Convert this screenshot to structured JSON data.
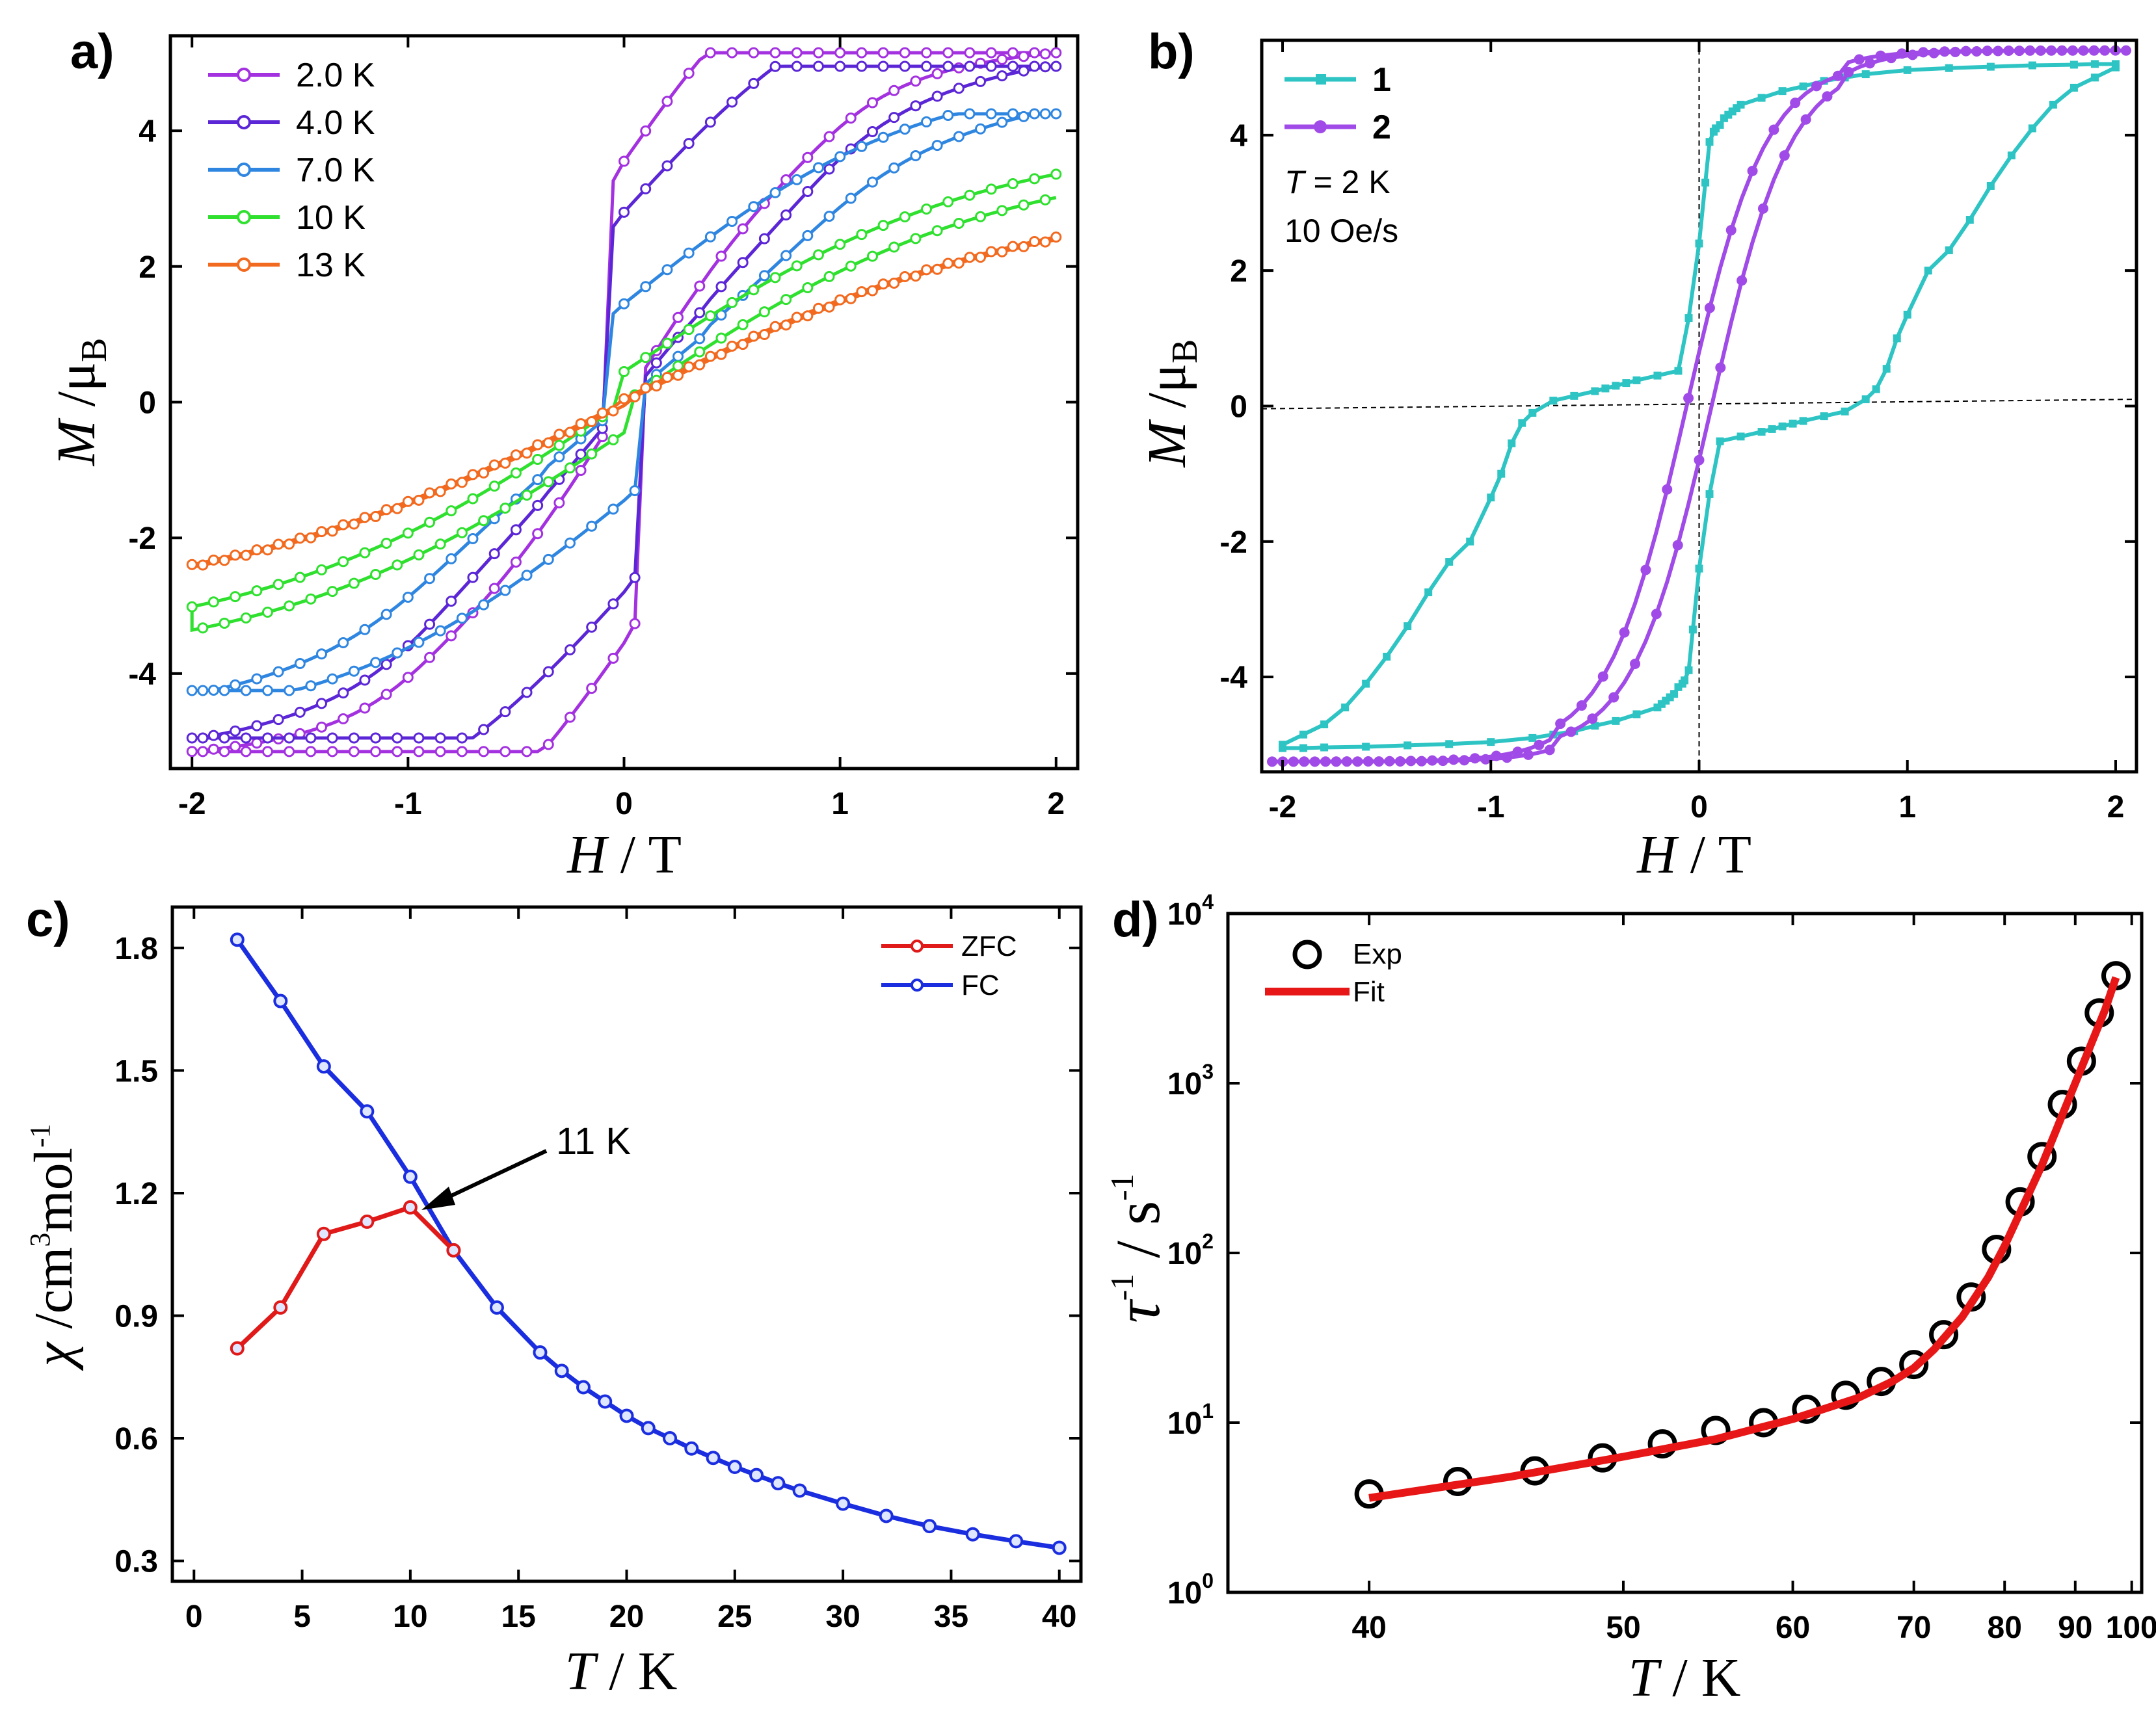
{
  "panels": {
    "a": {
      "label": "a)",
      "xlabel_italic": "H",
      "xlabel_rest": " / T",
      "ylabel_italic": "M",
      "ylabel_rest": " /μ",
      "ylabel_sub": "B",
      "xticks": [
        "-2",
        "-1",
        "0",
        "1",
        "2"
      ],
      "yticks": [
        "-4",
        "-2",
        "0",
        "2",
        "4"
      ]
    },
    "b": {
      "label": "b)",
      "xlabel_italic": "H",
      "xlabel_rest": " / T",
      "ylabel_italic": "M",
      "ylabel_rest": " /μ",
      "ylabel_sub": "B",
      "xticks": [
        "-2",
        "-1",
        "0",
        "1",
        "2"
      ],
      "yticks": [
        "-4",
        "-2",
        "0",
        "2",
        "4"
      ],
      "annotation_T_italic": "T",
      "annotation_T_rest": " = 2 K",
      "annotation_rate": "10 Oe/s"
    },
    "c": {
      "label": "c)",
      "xlabel_italic": "T",
      "xlabel_rest": " / K",
      "ylabel_italic": "χ",
      "ylabel_rest": " /cm",
      "ylabel_sup": "3",
      "ylabel_rest2": "mol",
      "ylabel_sup2": "-1",
      "xticks": [
        "0",
        "5",
        "10",
        "15",
        "20",
        "25",
        "30",
        "35",
        "40"
      ],
      "yticks": [
        "0.3",
        "0.6",
        "0.9",
        "1.2",
        "1.5",
        "1.8"
      ],
      "annotation": "11 K"
    },
    "d": {
      "label": "d)",
      "xlabel_italic": "T",
      "xlabel_rest": " / K",
      "ylabel_italic": "τ",
      "ylabel_sup": "-1",
      "ylabel_rest": " / s",
      "ylabel_sup2": "-1",
      "xticks": [
        "40",
        "50",
        "60",
        "70",
        "80",
        "90",
        "100"
      ],
      "yticks": [
        "10^0",
        "10^1",
        "10^2",
        "10^3",
        "10^4"
      ]
    }
  },
  "chart_data": [
    {
      "type": "line",
      "panel": "a",
      "xlabel": "H / T",
      "ylabel": "M /μB",
      "xlim": [
        -2.1,
        2.1
      ],
      "ylim": [
        -5.4,
        5.4
      ],
      "legend_position": "top-left",
      "series": [
        {
          "name": "2.0 K",
          "color": "#a331e0",
          "Ms": 5.15,
          "Hc": 0.08,
          "jump": 3.55,
          "k1": 0.63,
          "Hs": 0.95,
          "s": 0.14,
          "w": 0.22
        },
        {
          "name": "4.0 K",
          "color": "#5b26d6",
          "Ms": 4.95,
          "Hc": 0.08,
          "jump": 2.8,
          "k1": 0.75,
          "Hs": 0.9,
          "s": 0.16,
          "w": 0.32
        },
        {
          "name": "7.0 K",
          "color": "#2f86e0",
          "Ms": 4.25,
          "Hc": 0.07,
          "jump": 1.45,
          "k1": 0.95,
          "Hs": 0.9,
          "s": 0.22,
          "w": 0.42
        },
        {
          "name": "10 K",
          "color": "#2fe02f",
          "Ms": 3.65,
          "Hc": 0.05,
          "jump": 0.45,
          "k1": 1.25,
          "Hs": 0.0,
          "s": 0.3,
          "w": 0.62
        },
        {
          "name": "13 K",
          "color": "#f26a1f",
          "Ms": 3.1,
          "Hc": 0.03,
          "jump": 0.05,
          "k1": 1.45,
          "Hs": 0.0,
          "s": 0.3,
          "w": 0.85
        }
      ]
    },
    {
      "type": "line",
      "panel": "b",
      "xlabel": "H / T",
      "ylabel": "M /μB",
      "xlim": [
        -2.1,
        2.1
      ],
      "ylim": [
        -5.4,
        5.4
      ],
      "legend_position": "top-left",
      "series": [
        {
          "name": "1",
          "color": "#2ec4c4",
          "x": [
            2.0,
            1.9,
            1.8,
            1.7,
            1.6,
            1.5,
            1.4,
            1.3,
            1.2,
            1.1,
            1.0,
            0.95,
            0.9,
            0.85,
            0.8,
            0.7,
            0.6,
            0.5,
            0.45,
            0.4,
            0.35,
            0.3,
            0.2,
            0.1,
            0.05,
            0.0,
            -0.03,
            -0.05,
            -0.07,
            -0.08,
            -0.1,
            -0.12,
            -0.14,
            -0.16,
            -0.18,
            -0.2,
            -0.3,
            -0.4,
            -0.5,
            -0.6,
            -0.7,
            -0.8,
            -1.0,
            -1.2,
            -1.4,
            -1.6,
            -1.8,
            -1.9,
            -2.0
          ],
          "y": [
            5.0,
            4.85,
            4.7,
            4.45,
            4.1,
            3.7,
            3.25,
            2.75,
            2.3,
            2.0,
            1.35,
            1.0,
            0.55,
            0.25,
            0.1,
            -0.08,
            -0.15,
            -0.22,
            -0.26,
            -0.3,
            -0.34,
            -0.38,
            -0.45,
            -0.52,
            -1.3,
            -2.4,
            -3.3,
            -3.9,
            -4.05,
            -4.1,
            -4.15,
            -4.25,
            -4.3,
            -4.35,
            -4.4,
            -4.45,
            -4.55,
            -4.65,
            -4.72,
            -4.8,
            -4.85,
            -4.9,
            -4.96,
            -4.99,
            -5.01,
            -5.03,
            -5.04,
            -5.05,
            -5.05
          ]
        },
        {
          "name": "2",
          "color": "#a04ae8",
          "Ms": 5.25,
          "Hc": 0.05,
          "Hs": 0.0,
          "k1": 0.6,
          "jump": 0.0,
          "s": 0.3,
          "w": 0.3,
          "k2": 0.45
        }
      ],
      "annotations": [
        "T = 2 K",
        "10 Oe/s"
      ]
    },
    {
      "type": "line",
      "panel": "c",
      "xlabel": "T / K",
      "ylabel": "χ /cm3mol-1",
      "xlim": [
        -1,
        41
      ],
      "ylim": [
        0.25,
        1.9
      ],
      "legend_position": "top-right",
      "series": [
        {
          "name": "ZFC",
          "color": "#e01919",
          "x": [
            2,
            4,
            6,
            8,
            10,
            12
          ],
          "y": [
            0.82,
            0.92,
            1.1,
            1.13,
            1.165,
            1.06
          ]
        },
        {
          "name": "FC",
          "color": "#1a2ee0",
          "x": [
            2,
            4,
            6,
            8,
            10,
            12,
            14,
            16,
            17,
            18,
            19,
            20,
            21,
            22,
            23,
            24,
            25,
            26,
            27,
            28,
            30,
            32,
            34,
            36,
            38,
            40
          ],
          "y": [
            1.82,
            1.67,
            1.51,
            1.4,
            1.24,
            1.06,
            0.92,
            0.81,
            0.765,
            0.725,
            0.69,
            0.655,
            0.625,
            0.6,
            0.575,
            0.552,
            0.53,
            0.51,
            0.49,
            0.472,
            0.44,
            0.41,
            0.385,
            0.365,
            0.348,
            0.332
          ]
        }
      ],
      "annotations": [
        "11 K"
      ]
    },
    {
      "type": "scatter",
      "panel": "d",
      "xlabel": "T / K",
      "ylabel": "τ-1 / s-1",
      "xscale": "reciprocal",
      "xlim": [
        36,
        102
      ],
      "yscale": "log",
      "ylim": [
        1,
        10000
      ],
      "legend_position": "top-left",
      "series": [
        {
          "name": "Exp",
          "color": "#000000",
          "x": [
            40,
            43,
            46,
            49,
            52,
            55,
            58,
            61,
            64,
            67,
            70,
            73,
            76,
            79,
            82,
            85,
            88,
            91,
            94,
            97
          ],
          "y": [
            3.8,
            4.5,
            5.2,
            6.2,
            7.5,
            9.0,
            10.0,
            12.0,
            14.5,
            17.5,
            22.0,
            33.0,
            55.0,
            105.0,
            200.0,
            370.0,
            750.0,
            1350.0,
            2600.0,
            4300.0
          ]
        },
        {
          "name": "Fit",
          "color": "#e81717",
          "line": true,
          "x": [
            40,
            45,
            50,
            55,
            60,
            65,
            68,
            70,
            72,
            75,
            78,
            80,
            85,
            90,
            95,
            97
          ],
          "y": [
            3.6,
            4.8,
            6.3,
            8.0,
            10.5,
            14.0,
            17.5,
            21.0,
            27.0,
            42.0,
            72.0,
            110.0,
            330.0,
            1000.0,
            2700.0,
            4200.0
          ]
        }
      ]
    }
  ]
}
